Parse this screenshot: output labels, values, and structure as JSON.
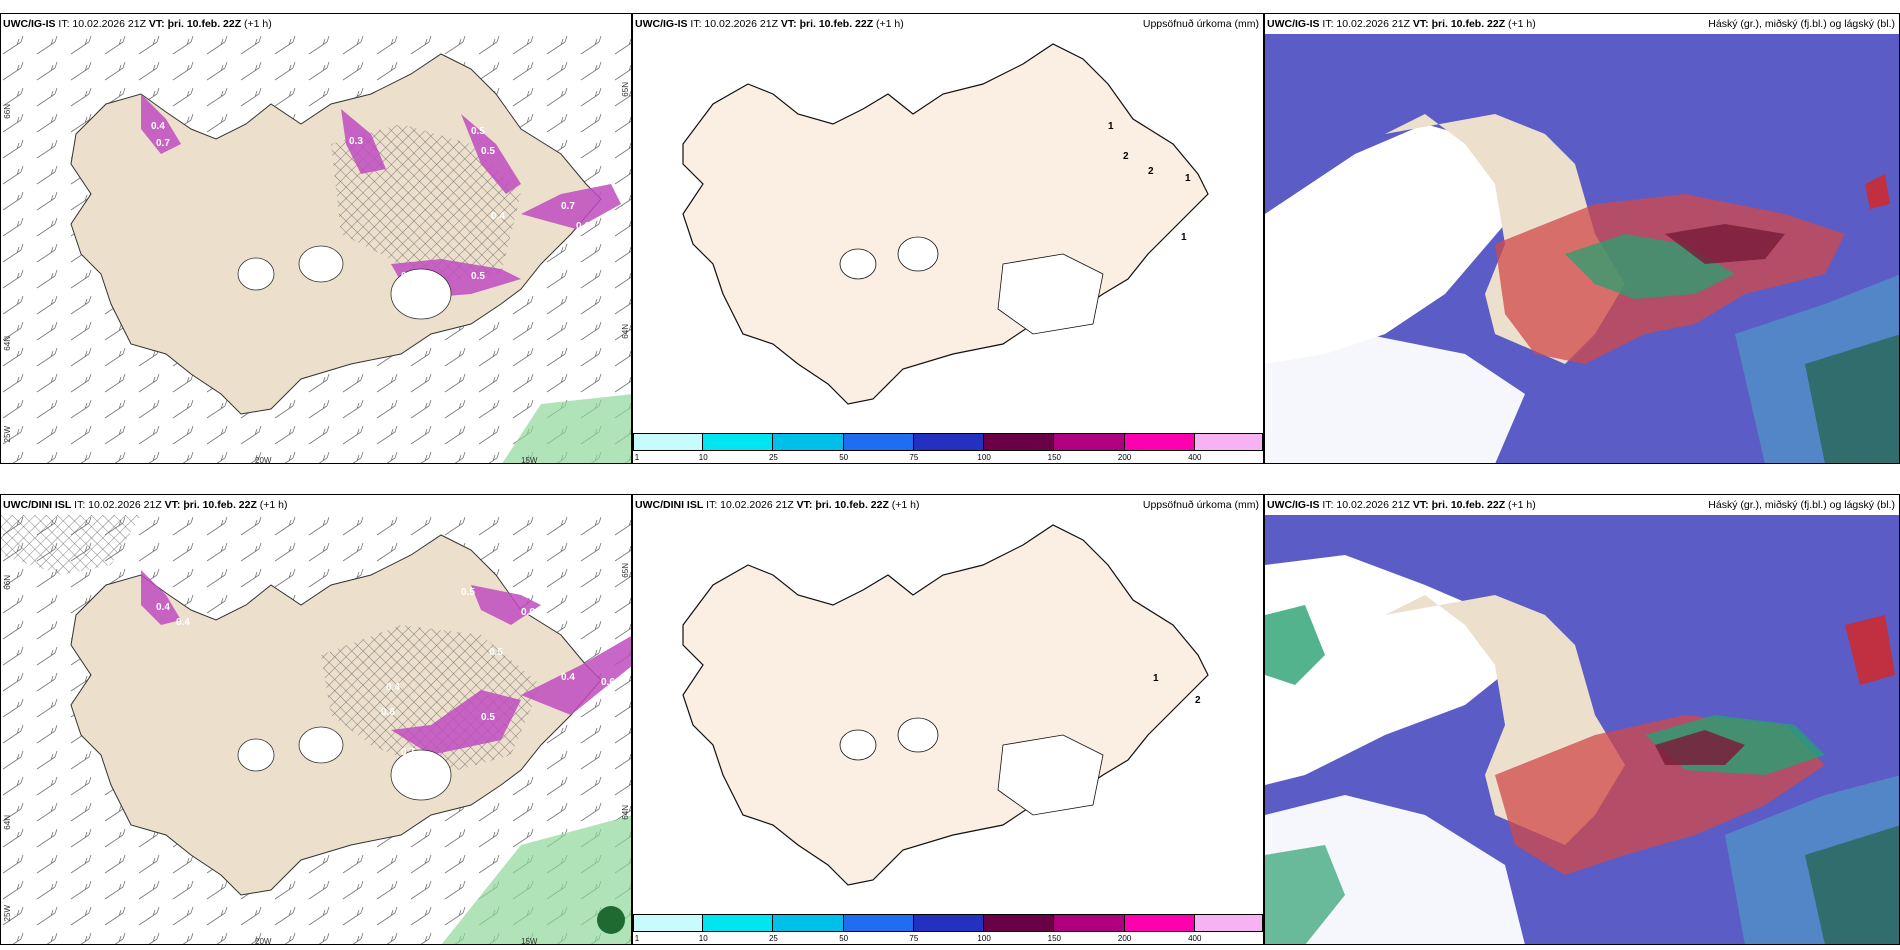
{
  "rows": [
    {
      "model": "UWC/IG-IS",
      "it": "IT: 10.02.2026 21Z",
      "vt_label": "VT:",
      "vt_value": "þri. 10.feb. 22Z",
      "lead": "(+1 h)",
      "left_axis": {
        "lat_a": "66N",
        "lat_b": "64N",
        "lat_c": "25W",
        "lon_a": "20W",
        "lon_b": "15W",
        "lat_r1": "65N",
        "lat_r2": "64N"
      },
      "precip_labels": [
        "0.4",
        "0.7",
        "0.3",
        "0.5",
        "0.5",
        "0.4",
        "0.7",
        "0.6",
        "0.5",
        "0.5",
        "0.3"
      ],
      "accum_labels": [
        "1",
        "2",
        "2",
        "1",
        "1"
      ],
      "cloud_model": "UWC/IG-IS"
    },
    {
      "model": "UWC/DINI ISL",
      "it": "IT: 10.02.2026 21Z",
      "vt_label": "VT:",
      "vt_value": "þri. 10.feb. 22Z",
      "lead": "(+1 h)",
      "left_axis": {
        "lat_a": "66N",
        "lat_b": "64N",
        "lat_c": "25W",
        "lon_a": "20W",
        "lon_b": "15W",
        "lat_r1": "65N",
        "lat_r2": "64N"
      },
      "precip_labels": [
        "0.4",
        "0.4",
        "0.5",
        "0.6",
        "0.5",
        "0.4",
        "0.4",
        "0.6",
        "0.5",
        "0.7",
        "0.6"
      ],
      "accum_labels": [
        "1",
        "2"
      ],
      "cloud_model": "UWC/IG-IS"
    }
  ],
  "accum_title": "Uppsöfnuð úrkoma (mm)",
  "cloud_title": "Háský (gr.), miðský (fj.bl.) og lágský (bl.)",
  "colorbar": {
    "ticks": [
      "1",
      "10",
      "25",
      "50",
      "75",
      "100",
      "150",
      "200",
      "400"
    ],
    "colors": [
      "#c8fbfb",
      "#00e5f0",
      "#00c0ea",
      "#1f6df0",
      "#2430c0",
      "#6a0046",
      "#b00080",
      "#ff00b0",
      "#f6b2f2"
    ]
  },
  "colors": {
    "land": "#ecdfcc",
    "land_accum": "#fbeee3",
    "sea": "#ffffff",
    "precip": "#c04cc0",
    "high_cloud": "#6b6ec6",
    "mid_cloud": "#2ca070",
    "low_cloud": "#d03030"
  }
}
